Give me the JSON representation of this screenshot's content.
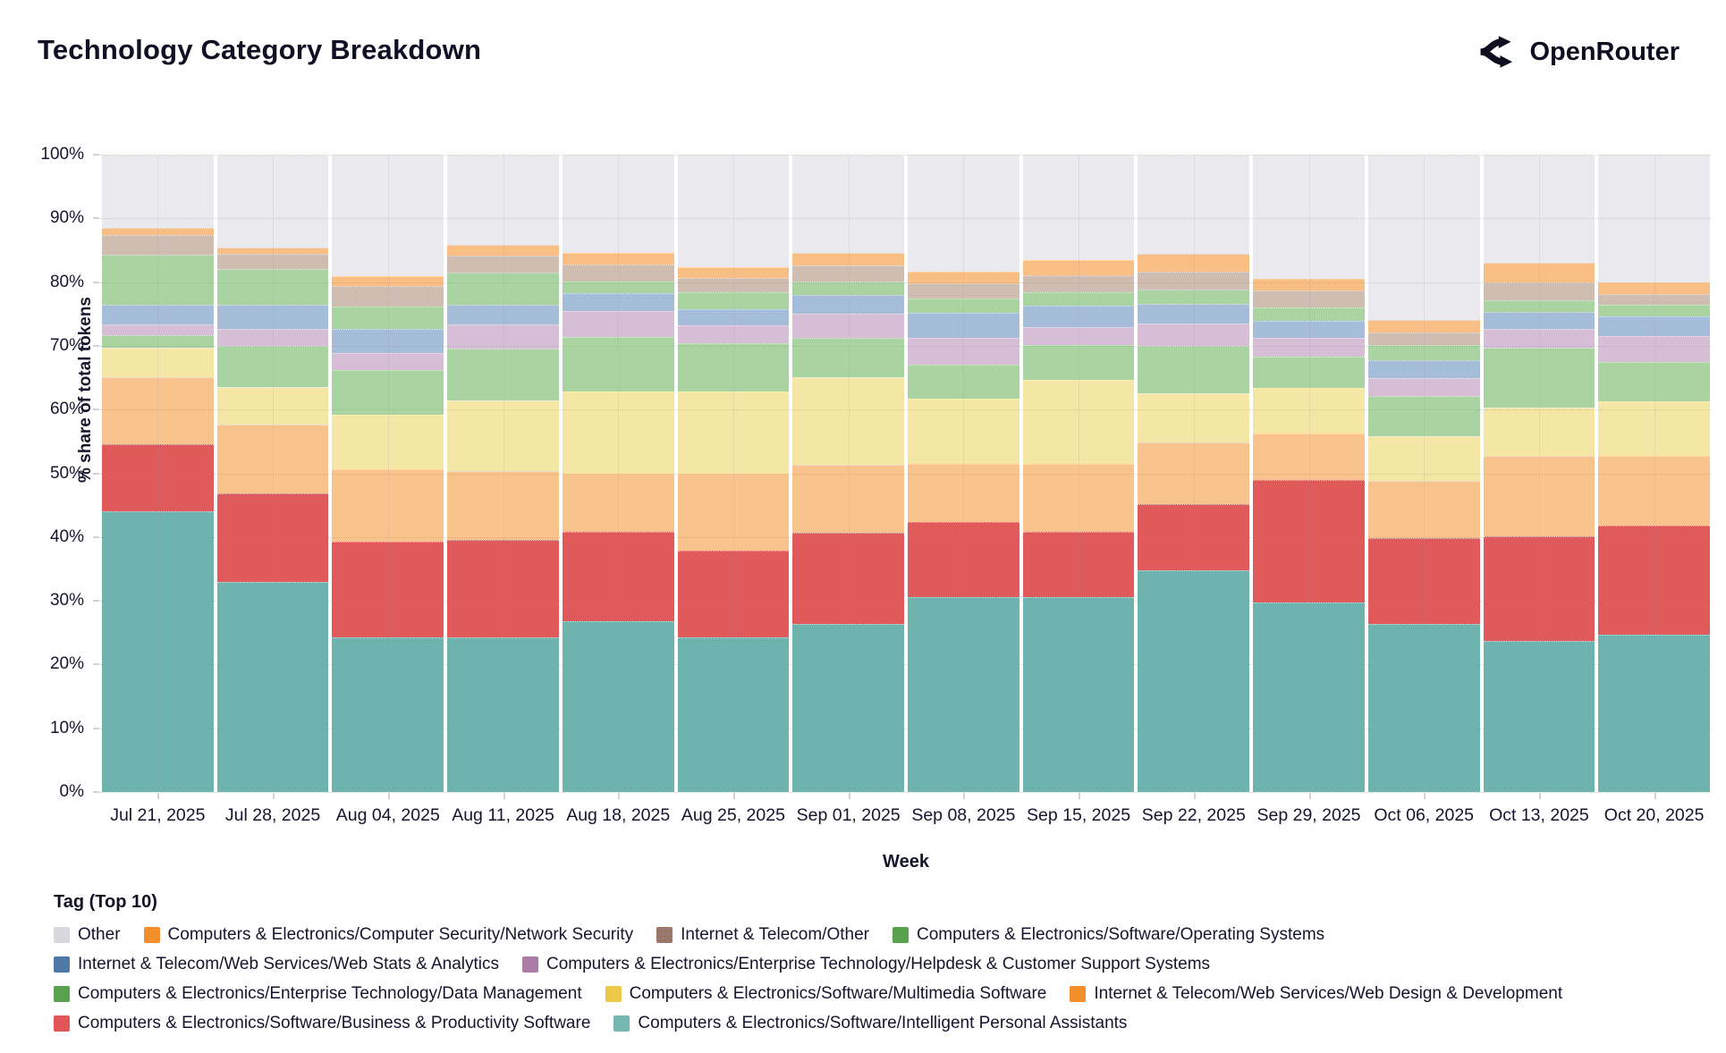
{
  "header": {
    "title": "Technology Category Breakdown",
    "brand": "OpenRouter"
  },
  "chart_data": {
    "type": "bar",
    "stacked": true,
    "percent": true,
    "title": "Technology Category Breakdown",
    "xlabel": "Week",
    "ylabel": "% share of total tokens",
    "ylim": [
      0,
      100
    ],
    "yticks": [
      "0%",
      "10%",
      "20%",
      "30%",
      "40%",
      "50%",
      "60%",
      "70%",
      "80%",
      "90%",
      "100%"
    ],
    "grid": true,
    "legend_title": "Tag (Top 10)",
    "legend_position": "bottom",
    "categories": [
      "Jul 21, 2025",
      "Jul 28, 2025",
      "Aug 04, 2025",
      "Aug 11, 2025",
      "Aug 18, 2025",
      "Aug 25, 2025",
      "Sep 01, 2025",
      "Sep 08, 2025",
      "Sep 15, 2025",
      "Sep 22, 2025",
      "Sep 29, 2025",
      "Oct 06, 2025",
      "Oct 13, 2025",
      "Oct 20, 2025"
    ],
    "stack_order_note": "series listed bottom-to-top as stacked; values are % share of total tokens per week",
    "series": [
      {
        "key": "ipa",
        "name": "Computers & Electronics/Software/Intelligent Personal Assistants",
        "legend_color": "#76b7b2",
        "fill": "#6fb3ae",
        "pattern": false,
        "values": [
          44.0,
          32.9,
          24.2,
          24.3,
          26.8,
          24.2,
          26.3,
          30.6,
          30.6,
          34.8,
          29.7,
          26.4,
          23.7,
          24.7
        ]
      },
      {
        "key": "bp",
        "name": "Computers & Electronics/Software/Business & Productivity Software",
        "legend_color": "#e15759",
        "fill": "#e05a5b",
        "pattern": false,
        "values": [
          10.6,
          13.9,
          15.1,
          15.2,
          14.0,
          13.7,
          14.4,
          11.7,
          10.2,
          10.4,
          19.3,
          13.4,
          16.4,
          17.1
        ]
      },
      {
        "key": "wdd",
        "name": "Internet & Telecom/Web Services/Web Design & Development",
        "legend_color": "#f28e2b",
        "fill": "#f9c38e",
        "pattern": false,
        "values": [
          10.5,
          10.8,
          11.4,
          10.9,
          9.2,
          12.0,
          10.6,
          9.2,
          10.7,
          9.7,
          7.3,
          9.0,
          12.6,
          11.0
        ]
      },
      {
        "key": "mm",
        "name": "Computers & Electronics/Software/Multimedia Software",
        "legend_color": "#edc948",
        "fill": "#f4e6a4",
        "pattern": false,
        "values": [
          4.6,
          6.0,
          8.5,
          11.1,
          12.9,
          13.0,
          13.8,
          10.2,
          13.1,
          7.7,
          7.1,
          7.0,
          7.6,
          8.5
        ]
      },
      {
        "key": "dm",
        "name": "Computers & Electronics/Enterprise Technology/Data Management",
        "legend_color": "#59a14f",
        "fill": "#aad3a2",
        "pattern": false,
        "values": [
          2.0,
          6.4,
          7.0,
          8.1,
          8.5,
          7.5,
          6.1,
          5.3,
          5.6,
          7.4,
          4.9,
          6.4,
          9.4,
          6.2
        ]
      },
      {
        "key": "hd",
        "name": "Computers & Electronics/Enterprise Technology/Helpdesk & Customer Support Systems",
        "legend_color": "#b07aa1",
        "fill": "#d6bed7",
        "pattern": true,
        "values": [
          1.7,
          2.6,
          2.7,
          3.7,
          4.1,
          2.8,
          3.9,
          4.2,
          2.8,
          3.5,
          3.0,
          2.8,
          3.0,
          4.0
        ]
      },
      {
        "key": "ws",
        "name": "Internet & Telecom/Web Services/Web Stats & Analytics",
        "legend_color": "#4e79a7",
        "fill": "#a6bdda",
        "pattern": false,
        "values": [
          3.0,
          3.8,
          3.8,
          3.2,
          2.7,
          2.6,
          2.9,
          4.0,
          3.3,
          3.1,
          2.6,
          2.7,
          2.6,
          3.1
        ]
      },
      {
        "key": "os",
        "name": "Computers & Electronics/Software/Operating Systems",
        "legend_color": "#59a14f",
        "fill": "#aad3a2",
        "pattern": false,
        "values": [
          7.9,
          5.6,
          3.5,
          5.0,
          1.9,
          2.6,
          2.1,
          2.2,
          2.1,
          2.2,
          2.1,
          2.4,
          1.9,
          1.8
        ]
      },
      {
        "key": "ito",
        "name": "Internet & Telecom/Other",
        "legend_color": "#9c755f",
        "fill": "#cfbdb1",
        "pattern": true,
        "values": [
          3.1,
          2.5,
          3.2,
          2.6,
          2.6,
          2.2,
          2.5,
          2.4,
          2.7,
          2.9,
          2.7,
          2.0,
          2.8,
          1.7
        ]
      },
      {
        "key": "ns",
        "name": "Computers & Electronics/Computer Security/Network Security",
        "legend_color": "#f28e2b",
        "fill": "#f9be83",
        "pattern": false,
        "values": [
          1.1,
          0.9,
          1.6,
          1.7,
          1.9,
          1.8,
          2.0,
          1.8,
          2.3,
          2.8,
          1.8,
          1.9,
          3.0,
          1.9
        ]
      },
      {
        "key": "other",
        "name": "Other",
        "legend_color": "#d8d8de",
        "fill": "#e9e9ee",
        "pattern": false,
        "values": [
          11.5,
          14.6,
          19.0,
          14.2,
          15.4,
          17.6,
          15.4,
          18.4,
          16.6,
          15.5,
          19.5,
          26.0,
          17.0,
          20.0
        ]
      }
    ],
    "legend_order": [
      "other",
      "ns",
      "ito",
      "os",
      "ws",
      "hd",
      "dm",
      "mm",
      "wdd",
      "bp",
      "ipa"
    ]
  }
}
